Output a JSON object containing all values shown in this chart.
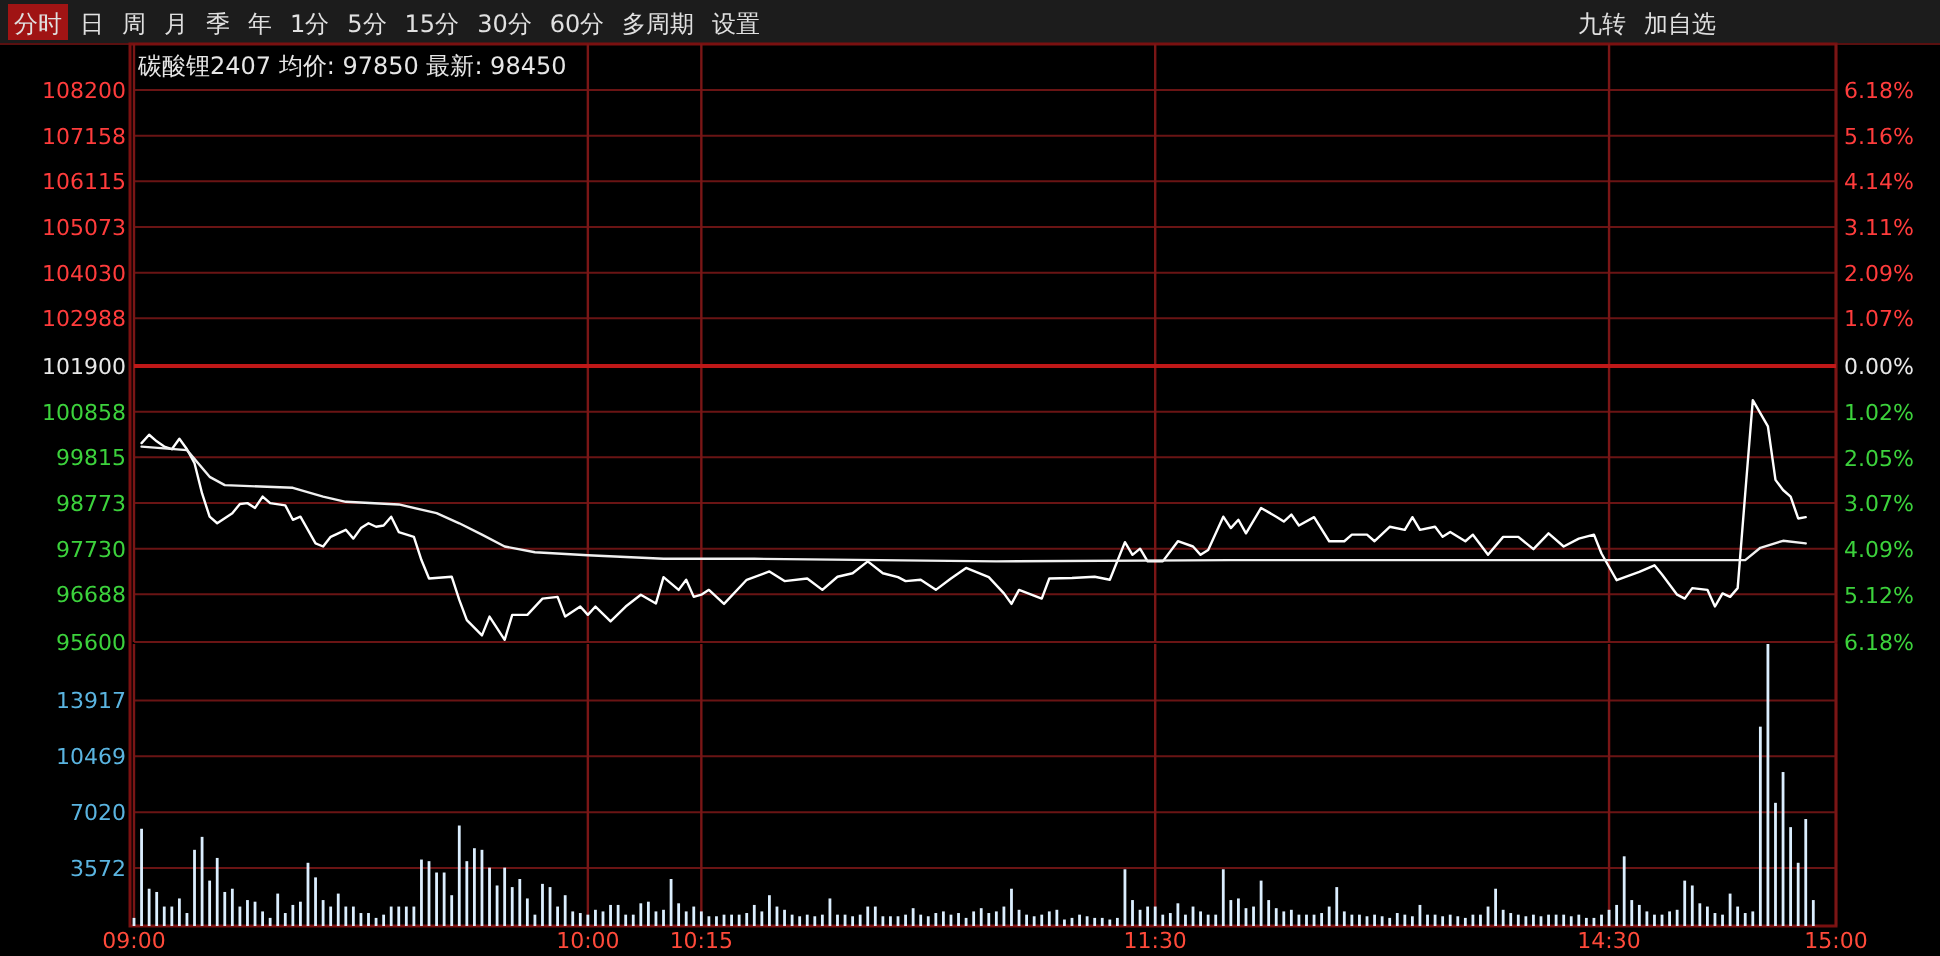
{
  "chart_data": [
    {
      "type": "line",
      "title": "碳酸锂2407 均价: 97850 最新: 98450",
      "annotations": [
        "分时",
        "日",
        "周",
        "月",
        "季",
        "年",
        "1分",
        "5分",
        "15分",
        "30分",
        "60分",
        "多周期",
        "设置",
        "九转",
        "加自选"
      ],
      "categories": [
        null,
        null,
        null,
        null,
        null,
        null,
        null,
        null,
        null,
        null,
        null,
        null,
        null,
        null,
        null,
        null,
        null,
        null,
        null,
        null,
        null,
        null,
        null,
        null,
        null,
        null,
        null,
        null,
        null,
        null,
        null,
        null,
        null,
        null,
        null,
        null,
        null,
        null,
        null,
        null,
        null,
        null,
        null,
        null,
        null,
        null,
        null,
        null,
        null,
        null,
        null,
        null,
        null,
        null,
        null,
        null,
        null,
        null,
        null,
        null,
        null,
        null,
        null,
        null,
        null,
        null,
        null,
        null,
        null,
        null,
        null,
        null,
        null,
        null,
        null,
        null,
        null,
        null,
        null,
        null,
        null,
        null,
        null,
        null,
        null,
        null,
        null,
        null,
        null,
        null,
        null,
        null,
        null,
        null,
        null,
        null,
        null,
        null,
        null,
        null,
        null,
        null,
        null,
        null,
        null,
        null,
        null,
        null,
        null,
        null,
        null,
        null,
        null,
        null,
        null,
        null,
        null,
        null,
        null,
        null,
        null,
        null,
        null,
        null,
        null,
        null,
        null,
        null,
        null,
        null,
        null,
        null,
        null,
        null,
        null,
        null,
        null,
        null,
        null,
        null,
        null,
        null,
        null,
        null,
        null,
        null,
        null,
        null,
        null,
        null,
        null,
        null,
        null,
        null,
        null,
        null,
        null,
        null,
        null,
        null,
        null,
        null,
        null,
        null,
        null,
        null,
        null,
        null,
        null,
        null,
        null,
        null,
        null,
        null,
        null,
        null,
        null,
        null,
        null,
        null,
        null,
        null,
        null,
        null,
        null,
        null,
        null,
        null,
        null,
        null,
        null,
        null,
        null,
        null,
        null,
        null,
        null,
        null,
        null,
        null,
        null,
        null,
        null,
        null,
        null,
        null,
        null,
        null,
        null,
        null,
        null,
        null,
        null,
        null,
        null,
        null,
        null,
        null,
        null,
        null,
        null,
        null,
        null,
        null,
        null,
        null
      ],
      "ylim": [
        95600,
        108200
      ],
      "yticks": [
        95600,
        96688,
        97730,
        98773,
        99815,
        100858,
        101900,
        102988,
        104030,
        105073,
        106115,
        107158,
        108200
      ],
      "y2lim": [
        -6.18,
        6.18
      ],
      "y2ticks": [
        {
          "value": -6.18,
          "label": "6.18%"
        },
        {
          "value": -5.12,
          "label": "5.12%"
        },
        {
          "value": -4.09,
          "label": "4.09%"
        },
        {
          "value": -3.07,
          "label": "3.07%"
        },
        {
          "value": -2.05,
          "label": "2.05%"
        },
        {
          "value": -1.02,
          "label": "1.02%"
        },
        {
          "value": 0,
          "label": "0.00%"
        },
        {
          "value": 1.07,
          "label": "1.07%"
        },
        {
          "value": 2.09,
          "label": "2.09%"
        },
        {
          "value": 3.11,
          "label": "3.11%"
        },
        {
          "value": 4.14,
          "label": "4.14%"
        },
        {
          "value": 5.16,
          "label": "5.16%"
        },
        {
          "value": 6.18,
          "label": "6.18%"
        }
      ],
      "ref_lines": [
        {
          "axis": "y",
          "value": 101900,
          "color": "#c01818"
        }
      ],
      "grid": true,
      "series": [
        {
          "color": "#ffffff",
          "values": [
            null,
            100140,
            100330,
            100180,
            100060,
            100000,
            100240,
            100000,
            99680,
            98990,
            98460,
            98310,
            null,
            98540,
            98750,
            98770,
            98660,
            98920,
            98770,
            null,
            98720,
            98390,
            98460,
            null,
            97850,
            97780,
            98000,
            98080,
            98160,
            97960,
            98200,
            98310,
            98230,
            98260,
            98460,
            98110,
            null,
            98000,
            97470,
            97050,
            null,
            null,
            97090,
            96560,
            96100,
            null,
            95750,
            96180,
            null,
            95650,
            96220,
            null,
            96220,
            null,
            96590,
            null,
            96630,
            96180,
            null,
            96410,
            96220,
            96410,
            null,
            96070,
            null,
            96410,
            null,
            96680,
            null,
            96480,
            97080,
            null,
            96790,
            97020,
            96630,
            96680,
            96790,
            null,
            96470,
            null,
            null,
            97020,
            null,
            null,
            97210,
            null,
            96990,
            null,
            null,
            97050,
            null,
            96790,
            null,
            97090,
            null,
            97170,
            null,
            97440,
            null,
            97170,
            null,
            97080,
            96990,
            null,
            97020,
            null,
            96790,
            null,
            97050,
            null,
            97290,
            null,
            null,
            97080,
            null,
            96710,
            96470,
            96790,
            null,
            null,
            96590,
            97050,
            null,
            null,
            97060,
            null,
            null,
            97090,
            null,
            97020,
            null,
            97880,
            97590,
            97730,
            97440,
            null,
            97440,
            null,
            97900,
            null,
            97780,
            97590,
            97700,
            null,
            98460,
            98200,
            98390,
            98080,
            null,
            98660,
            null,
            98460,
            98350,
            98510,
            98260,
            null,
            98450,
            null,
            97900,
            null,
            97900,
            98050,
            null,
            98050,
            97900,
            null,
            98230,
            null,
            98160,
            98450,
            98160,
            null,
            98230,
            98000,
            98110,
            null,
            97900,
            98050,
            null,
            97590,
            null,
            98000,
            null,
            98000,
            null,
            97720,
            null,
            98080,
            null,
            97780,
            null,
            97960,
            null,
            98050,
            97620,
            null,
            97010,
            null,
            null,
            97200,
            null,
            97350,
            97140,
            null,
            96680,
            96590,
            96830,
            null,
            96790,
            96410,
            96710,
            96630,
            96830,
            98990,
            101120,
            null,
            100520,
            99300,
            99070,
            98920,
            98420,
            98450,
            null,
            null,
            null,
            null
          ]
        },
        {
          "color": "#f0f0f0",
          "values": [
            null,
            100060,
            null,
            null,
            null,
            null,
            null,
            99980,
            null,
            null,
            99370,
            null,
            99180,
            null,
            null,
            null,
            null,
            null,
            null,
            null,
            null,
            99120,
            null,
            null,
            null,
            98920,
            null,
            null,
            98800,
            null,
            null,
            null,
            null,
            null,
            null,
            98740,
            null,
            null,
            null,
            null,
            98540,
            null,
            null,
            98310,
            null,
            null,
            98050,
            null,
            null,
            97780,
            null,
            null,
            null,
            97650,
            null,
            null,
            null,
            null,
            null,
            null,
            97580,
            null,
            null,
            null,
            null,
            null,
            null,
            null,
            null,
            null,
            97500,
            null,
            null,
            null,
            null,
            null,
            null,
            null,
            null,
            null,
            null,
            null,
            97500,
            null,
            null,
            null,
            null,
            null,
            null,
            null,
            null,
            null,
            null,
            null,
            null,
            null,
            null,
            null,
            null,
            null,
            null,
            null,
            null,
            null,
            null,
            null,
            null,
            null,
            null,
            null,
            null,
            null,
            null,
            null,
            97440,
            null,
            null,
            null,
            null,
            null,
            null,
            null,
            null,
            null,
            null,
            null,
            null,
            null,
            null,
            null,
            null,
            null,
            null,
            null,
            null,
            null,
            null,
            null,
            null,
            null,
            null,
            null,
            null,
            null,
            null,
            97470,
            null,
            null,
            null,
            null,
            null,
            null,
            null,
            null,
            null,
            null,
            null,
            null,
            null,
            null,
            null,
            null,
            null,
            null,
            null,
            null,
            null,
            null,
            null,
            null,
            null,
            null,
            null,
            null,
            null,
            null,
            null,
            null,
            null,
            null,
            null,
            null,
            null,
            null,
            null,
            null,
            null,
            null,
            null,
            null,
            null,
            null,
            null,
            null,
            null,
            null,
            null,
            null,
            null,
            null,
            null,
            null,
            null,
            null,
            null,
            null,
            null,
            null,
            null,
            97470,
            null,
            null,
            null,
            97470,
            null,
            97750,
            null,
            null,
            97910,
            null,
            null,
            97850,
            null,
            null,
            null,
            null
          ]
        }
      ]
    },
    {
      "type": "bar",
      "color": "#dcefff",
      "categories": [
        "09:00",
        null,
        null,
        null,
        null,
        null,
        null,
        null,
        null,
        null,
        null,
        null,
        null,
        null,
        null,
        null,
        null,
        null,
        null,
        null,
        null,
        null,
        null,
        null,
        null,
        null,
        null,
        null,
        null,
        null,
        null,
        null,
        null,
        null,
        null,
        null,
        null,
        null,
        null,
        null,
        null,
        null,
        null,
        null,
        null,
        null,
        null,
        null,
        null,
        null,
        null,
        null,
        null,
        null,
        null,
        null,
        null,
        null,
        null,
        null,
        "10:00",
        null,
        null,
        null,
        null,
        null,
        null,
        null,
        null,
        null,
        null,
        null,
        null,
        null,
        null,
        "10:15",
        null,
        null,
        null,
        null,
        null,
        null,
        null,
        null,
        null,
        null,
        null,
        null,
        null,
        null,
        null,
        null,
        null,
        null,
        null,
        null,
        null,
        null,
        null,
        null,
        null,
        null,
        null,
        null,
        null,
        null,
        null,
        null,
        null,
        null,
        null,
        null,
        null,
        null,
        null,
        null,
        null,
        null,
        null,
        null,
        null,
        null,
        null,
        null,
        null,
        null,
        null,
        null,
        null,
        null,
        null,
        null,
        null,
        null,
        null,
        "11:30",
        null,
        null,
        null,
        null,
        null,
        null,
        null,
        null,
        null,
        null,
        null,
        null,
        null,
        null,
        null,
        null,
        null,
        null,
        null,
        null,
        null,
        null,
        null,
        null,
        null,
        null,
        null,
        null,
        null,
        null,
        null,
        null,
        null,
        null,
        null,
        null,
        null,
        null,
        null,
        null,
        null,
        null,
        null,
        null,
        null,
        null,
        null,
        null,
        null,
        null,
        null,
        null,
        null,
        null,
        null,
        null,
        null,
        null,
        null,
        "14:30",
        null,
        null,
        null,
        null,
        null,
        null,
        null,
        null,
        null,
        null,
        null,
        null,
        null,
        null,
        null,
        null,
        null,
        null,
        null,
        null,
        null,
        null,
        null,
        null,
        null,
        null,
        null,
        null,
        null,
        "15:00"
      ],
      "ylim": [
        0,
        17400
      ],
      "yticks": [
        3572,
        7020,
        10469,
        13917
      ],
      "grid": true,
      "values": [
        500,
        6000,
        2300,
        2100,
        1200,
        1200,
        1700,
        800,
        4700,
        5500,
        2800,
        4200,
        2100,
        2300,
        1200,
        1600,
        1500,
        900,
        500,
        2000,
        800,
        1300,
        1500,
        3900,
        3000,
        1600,
        1200,
        2000,
        1200,
        1200,
        800,
        800,
        500,
        700,
        1200,
        1200,
        1200,
        1200,
        4100,
        4000,
        3300,
        3300,
        1900,
        6200,
        4000,
        4800,
        4700,
        3600,
        2500,
        3600,
        2400,
        2900,
        1700,
        700,
        2600,
        2400,
        1200,
        1900,
        900,
        800,
        700,
        1000,
        900,
        1300,
        1300,
        700,
        700,
        1400,
        1500,
        900,
        1000,
        2900,
        1400,
        900,
        1200,
        900,
        600,
        600,
        700,
        700,
        700,
        800,
        1300,
        900,
        1900,
        1200,
        1000,
        700,
        600,
        700,
        600,
        700,
        1700,
        700,
        700,
        600,
        700,
        1200,
        1200,
        600,
        600,
        600,
        700,
        1100,
        700,
        600,
        800,
        900,
        700,
        800,
        500,
        900,
        1100,
        800,
        900,
        1200,
        2300,
        1000,
        700,
        600,
        700,
        900,
        1000,
        400,
        500,
        700,
        600,
        500,
        500,
        400,
        500,
        3500,
        1600,
        1000,
        1200,
        1200,
        700,
        800,
        1400,
        700,
        1200,
        900,
        700,
        700,
        3500,
        1600,
        1700,
        1100,
        1200,
        2800,
        1600,
        1100,
        900,
        1000,
        700,
        700,
        700,
        800,
        1200,
        2400,
        900,
        700,
        700,
        600,
        700,
        600,
        500,
        800,
        700,
        600,
        1300,
        700,
        700,
        600,
        700,
        600,
        500,
        700,
        700,
        1200,
        2300,
        1000,
        800,
        700,
        600,
        700,
        600,
        700,
        700,
        700,
        600,
        700,
        500,
        500,
        700,
        1000,
        1300,
        4300,
        1600,
        1300,
        900,
        700,
        700,
        900,
        1000,
        2800,
        2500,
        1400,
        1200,
        800,
        700,
        2000,
        1200,
        800,
        900,
        12300,
        17400,
        7600,
        9500,
        6100,
        3900,
        6600,
        1600,
        null,
        null,
        null
      ]
    }
  ]
}
